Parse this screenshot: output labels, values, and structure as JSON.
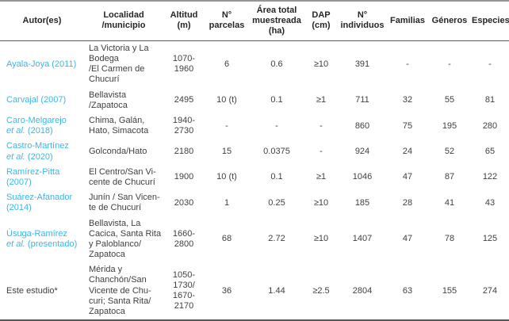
{
  "colors": {
    "link_blue": "#3db5e6",
    "text": "#3f3f3f",
    "border_top": "#969696",
    "border_dark": "#595959"
  },
  "table": {
    "headers": [
      "Autor(es)",
      "Localidad\n/municipio",
      "Altitud\n(m)",
      "N°\nparcelas",
      "Área total\nmuestreada\n(ha)",
      "DAP\n(cm)",
      "N°\nindividuos",
      "Familias",
      "Géneros",
      "Especies"
    ],
    "rows": [
      {
        "author": {
          "name": "Ayala-Joya (2011)",
          "etal": "",
          "year": ""
        },
        "locality": "La Victoria y La\nBodega\n/El Carmen de\nChucurí",
        "altitude": "1070-\n1960",
        "plots": "6",
        "area": "0.6",
        "dap": "≥10",
        "individuals": "391",
        "families": "-",
        "genera": "-",
        "species": "-"
      },
      {
        "author": {
          "name": "Carvajal (2007)",
          "etal": "",
          "year": ""
        },
        "locality": "Bellavista\n/Zapatoca",
        "altitude": "2495",
        "plots": "10 (t)",
        "area": "0.1",
        "dap": "≥1",
        "individuals": "711",
        "families": "32",
        "genera": "55",
        "species": "81"
      },
      {
        "author": {
          "name": "Caro-Melgarejo\n",
          "etal": "et al.",
          "year": " (2018)"
        },
        "locality": "Chima, Galán,\nHato, Simacota",
        "altitude": "1940-\n2730",
        "plots": "-",
        "area": "-",
        "dap": "-",
        "individuals": "860",
        "families": "75",
        "genera": "195",
        "species": "280"
      },
      {
        "author": {
          "name": "Castro-Martínez\n",
          "etal": "et al.",
          "year": " (2020)"
        },
        "locality": "Golconda/Hato",
        "altitude": "2180",
        "plots": "15",
        "area": "0.0375",
        "dap": "-",
        "individuals": "924",
        "families": "24",
        "genera": "52",
        "species": "65"
      },
      {
        "author": {
          "name": "Ramírez-Pitta\n(2007)",
          "etal": "",
          "year": ""
        },
        "locality": "El Centro/San Vi-\ncente de Chucurí",
        "altitude": "1900",
        "plots": "10 (t)",
        "area": "0.1",
        "dap": "≥1",
        "individuals": "1046",
        "families": "47",
        "genera": "87",
        "species": "122"
      },
      {
        "author": {
          "name": "Suárez-Afanador\n(2014)",
          "etal": "",
          "year": ""
        },
        "locality": "Junín / San Vicen-\nte de Chucurí",
        "altitude": "2030",
        "plots": "1",
        "area": "0.25",
        "dap": "≥10",
        "individuals": "185",
        "families": "28",
        "genera": "41",
        "species": "43"
      },
      {
        "author": {
          "name": "Úsuga-Ramírez\n",
          "etal": "et al.",
          "year": " (presentado)"
        },
        "locality": "Bellavista, La\nCacica, Santa Rita\ny Paloblanco/\nZapatoca",
        "altitude": "1660-\n2800",
        "plots": "68",
        "area": "2.72",
        "dap": "≥10",
        "individuals": "1407",
        "families": "47",
        "genera": "78",
        "species": "125"
      },
      {
        "author": {
          "name": "Este estudio*",
          "etal": "",
          "year": ""
        },
        "locality": "Mérida y\nChanchón/San\nVicente de Chu-\ncuri; Santa Rita/\nZapatoca",
        "altitude": "1050-\n1730/\n1670-\n2170",
        "plots": "36",
        "area": "1.44",
        "dap": "≥2.5",
        "individuals": "2804",
        "families": "63",
        "genera": "155",
        "species": "274"
      }
    ]
  }
}
